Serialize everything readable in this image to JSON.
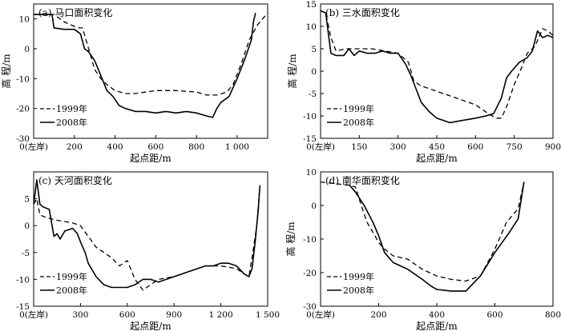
{
  "chart_data": [
    {
      "type": "line",
      "title": "(a) 马口面积变化",
      "xlabel": "起点距/m",
      "ylabel": "高 程/m",
      "xlim": [
        0,
        1150
      ],
      "ylim": [
        -30,
        15
      ],
      "xticks": [
        0,
        200,
        400,
        600,
        800,
        1000
      ],
      "xtick_labels": [
        "0(左岸)",
        "200",
        "400",
        "600",
        "800",
        "1 000"
      ],
      "yticks": [
        -30,
        -20,
        -10,
        0,
        10
      ],
      "ytick_labels": [
        "-30",
        "-20",
        "-10",
        "0",
        "10"
      ],
      "legend_position": "bottom-left",
      "series": [
        {
          "name": "1999年",
          "dash": true,
          "x": [
            0,
            50,
            100,
            150,
            200,
            220,
            240,
            270,
            300,
            330,
            360,
            400,
            450,
            500,
            600,
            700,
            800,
            850,
            900,
            950,
            980,
            1020,
            1060,
            1100,
            1150
          ],
          "y": [
            11.5,
            11.5,
            11.5,
            9,
            7.5,
            7,
            7,
            0,
            -7,
            -10,
            -12,
            -14,
            -15,
            -15,
            -14,
            -14,
            -14.5,
            -15.5,
            -15.5,
            -14.5,
            -12,
            -5,
            3,
            8,
            12
          ]
        },
        {
          "name": "2008年",
          "dash": false,
          "x": [
            0,
            50,
            90,
            100,
            150,
            200,
            230,
            250,
            270,
            300,
            330,
            360,
            390,
            420,
            450,
            500,
            550,
            600,
            650,
            700,
            750,
            800,
            850,
            880,
            900,
            920,
            960,
            1000,
            1040,
            1070,
            1080,
            1090
          ],
          "y": [
            11.5,
            11.5,
            11.5,
            7,
            6.5,
            6.5,
            5,
            0,
            -1,
            -4,
            -9,
            -14,
            -16,
            -19,
            -20,
            -21,
            -21,
            -21.5,
            -21,
            -21.5,
            -21,
            -21.5,
            -22.5,
            -23,
            -20,
            -18,
            -16,
            -10,
            -3,
            3,
            9,
            12
          ]
        }
      ]
    },
    {
      "type": "line",
      "title": "(b) 三水面积变化",
      "xlabel": "起点距/m",
      "ylabel": "高 程/m",
      "xlim": [
        0,
        900
      ],
      "ylim": [
        -15,
        15
      ],
      "xticks": [
        0,
        150,
        300,
        450,
        600,
        750,
        900
      ],
      "xtick_labels": [
        "0(左岸)",
        "150",
        "300",
        "450",
        "600",
        "750",
        "900"
      ],
      "yticks": [
        -15,
        -10,
        -5,
        0,
        5,
        10,
        15
      ],
      "ytick_labels": [
        "-15",
        "-10",
        "-5",
        "0",
        "5",
        "10",
        "15"
      ],
      "legend_position": "bottom-left",
      "series": [
        {
          "name": "1999年",
          "dash": true,
          "x": [
            0,
            20,
            40,
            60,
            100,
            150,
            200,
            250,
            300,
            340,
            360,
            380,
            400,
            450,
            500,
            550,
            600,
            650,
            680,
            700,
            720,
            750,
            780,
            800,
            830,
            860,
            880,
            900
          ],
          "y": [
            13.5,
            13,
            7.5,
            4.5,
            5,
            5,
            5,
            4.5,
            4,
            2,
            -2,
            -3,
            -3.5,
            -4.5,
            -5.5,
            -6.5,
            -7.5,
            -9.5,
            -10.5,
            -10.5,
            -8,
            -3,
            1,
            4,
            5.5,
            9.5,
            9,
            8
          ]
        },
        {
          "name": "2008年",
          "dash": false,
          "x": [
            0,
            20,
            40,
            60,
            90,
            110,
            130,
            150,
            180,
            210,
            240,
            270,
            300,
            330,
            350,
            370,
            390,
            420,
            450,
            500,
            550,
            600,
            640,
            670,
            700,
            720,
            740,
            770,
            800,
            820,
            840,
            860,
            880,
            900
          ],
          "y": [
            13.5,
            13,
            4,
            3.5,
            3.5,
            5,
            3.5,
            4.5,
            4,
            4,
            4.5,
            4,
            4,
            1.5,
            -1,
            -4,
            -7,
            -9,
            -10.5,
            -11.5,
            -11,
            -10.5,
            -10,
            -9.5,
            -6,
            -1.5,
            0,
            2,
            3,
            4.5,
            9,
            7.5,
            8,
            7.5
          ]
        }
      ]
    },
    {
      "type": "line",
      "title": "(c) 天河面积变化",
      "xlabel": "起点距/m",
      "ylabel": "",
      "xlim": [
        0,
        1500
      ],
      "ylim": [
        -15,
        10
      ],
      "xticks": [
        0,
        300,
        600,
        900,
        1200,
        1500
      ],
      "xtick_labels": [
        "0(左岸)",
        "300",
        "600",
        "900",
        "1 200",
        "1 500"
      ],
      "yticks": [
        -15,
        -10,
        -5,
        0,
        5
      ],
      "ytick_labels": [
        "-15",
        "-10",
        "-5",
        "0",
        "5"
      ],
      "legend_position": "bottom-left",
      "series": [
        {
          "name": "1999年",
          "dash": true,
          "x": [
            0,
            20,
            40,
            80,
            150,
            250,
            300,
            350,
            400,
            450,
            500,
            550,
            600,
            650,
            700,
            750,
            800,
            900,
            1000,
            1100,
            1200,
            1300,
            1350,
            1380,
            1400,
            1430,
            1450
          ],
          "y": [
            4,
            5,
            2,
            1.5,
            1,
            0.5,
            0,
            -2,
            -4,
            -5,
            -6,
            -7.5,
            -6.5,
            -10,
            -12,
            -11,
            -10,
            -9.5,
            -8.5,
            -7.5,
            -7.5,
            -8,
            -9,
            -9.5,
            -6,
            0,
            7.5
          ]
        },
        {
          "name": "2008年",
          "dash": false,
          "x": [
            0,
            20,
            40,
            60,
            100,
            130,
            150,
            170,
            200,
            250,
            280,
            300,
            330,
            350,
            400,
            450,
            500,
            550,
            600,
            650,
            700,
            750,
            800,
            850,
            900,
            950,
            1000,
            1050,
            1100,
            1150,
            1200,
            1250,
            1300,
            1350,
            1380,
            1400,
            1420,
            1440,
            1450
          ],
          "y": [
            4,
            8.5,
            4,
            3.5,
            3,
            -2,
            -1.5,
            -2.5,
            -1,
            -0.5,
            -1.5,
            -3,
            -5,
            -7,
            -9.5,
            -11,
            -11.5,
            -11.5,
            -11.5,
            -11,
            -10,
            -10,
            -10.5,
            -10,
            -9.5,
            -9,
            -8.5,
            -8,
            -7.5,
            -7.5,
            -7,
            -7,
            -7.5,
            -9,
            -9.5,
            -8,
            -3,
            3,
            7.5
          ]
        }
      ]
    },
    {
      "type": "line",
      "title": "(d) 南华面积变化",
      "xlabel": "起点距/m",
      "ylabel": "高 程/m",
      "xlim": [
        0,
        800
      ],
      "ylim": [
        -30,
        10
      ],
      "xticks": [
        0,
        200,
        400,
        600,
        800
      ],
      "xtick_labels": [
        "0(左岸)",
        "200",
        "400",
        "600",
        "800"
      ],
      "yticks": [
        -30,
        -20,
        -10,
        0,
        10
      ],
      "ytick_labels": [
        "-30",
        "-20",
        "-10",
        "0",
        "10"
      ],
      "legend_position": "bottom-left",
      "series": [
        {
          "name": "1999年",
          "dash": true,
          "x": [
            0,
            50,
            100,
            120,
            140,
            160,
            180,
            200,
            220,
            250,
            300,
            350,
            400,
            450,
            500,
            550,
            600,
            640,
            680,
            700
          ],
          "y": [
            7,
            6.5,
            6,
            5.5,
            0,
            -5,
            -8,
            -11,
            -13,
            -15,
            -16,
            -19,
            -21,
            -22,
            -22.5,
            -21,
            -13,
            -5,
            -1,
            7
          ]
        },
        {
          "name": "2008年",
          "dash": false,
          "x": [
            100,
            120,
            150,
            180,
            200,
            220,
            250,
            300,
            350,
            380,
            400,
            450,
            500,
            550,
            600,
            650,
            680,
            700
          ],
          "y": [
            6,
            4,
            0,
            -5,
            -9,
            -14,
            -17,
            -19,
            -22,
            -24,
            -25,
            -25.5,
            -25.5,
            -21,
            -14,
            -8,
            -4,
            7
          ]
        }
      ]
    }
  ]
}
